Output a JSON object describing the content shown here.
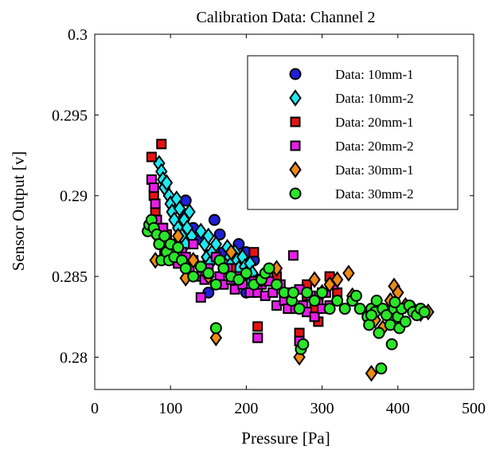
{
  "chart_data": {
    "type": "scatter",
    "title": "Calibration Data: Channel 2",
    "xlabel": "Pressure [Pa]",
    "ylabel": "Sensor Output [v]",
    "xlim": [
      0,
      500
    ],
    "ylim": [
      0.278,
      0.3
    ],
    "xticks": [
      0,
      100,
      200,
      300,
      400,
      500
    ],
    "xtick_labels": [
      "0",
      "100",
      "200",
      "300",
      "400",
      "500"
    ],
    "yticks": [
      0.28,
      0.285,
      0.29,
      0.295,
      0.3
    ],
    "ytick_labels": [
      "0.28",
      "0.285",
      "0.29",
      "0.295",
      "0.3"
    ],
    "grid": false,
    "legend_position": "top-right",
    "series": [
      {
        "name": "Data: 10mm-1",
        "marker": "circle",
        "color": "#1f1fd6",
        "points": [
          [
            120,
            0.2897
          ],
          [
            130,
            0.288
          ],
          [
            140,
            0.2873
          ],
          [
            150,
            0.286
          ],
          [
            158,
            0.2885
          ],
          [
            165,
            0.2876
          ],
          [
            170,
            0.2865
          ],
          [
            180,
            0.2862
          ],
          [
            190,
            0.287
          ],
          [
            195,
            0.2858
          ],
          [
            200,
            0.2865
          ],
          [
            205,
            0.2852
          ],
          [
            210,
            0.286
          ],
          [
            215,
            0.2848
          ],
          [
            150,
            0.284
          ],
          [
            200,
            0.284
          ],
          [
            118,
            0.2888
          ]
        ]
      },
      {
        "name": "Data: 10mm-2",
        "marker": "diamond",
        "color": "#1fe8f0",
        "points": [
          [
            85,
            0.292
          ],
          [
            88,
            0.2915
          ],
          [
            90,
            0.291
          ],
          [
            92,
            0.2905
          ],
          [
            95,
            0.2908
          ],
          [
            98,
            0.29
          ],
          [
            100,
            0.2895
          ],
          [
            102,
            0.289
          ],
          [
            105,
            0.2885
          ],
          [
            108,
            0.2898
          ],
          [
            110,
            0.288
          ],
          [
            112,
            0.2892
          ],
          [
            115,
            0.2875
          ],
          [
            118,
            0.2885
          ],
          [
            120,
            0.287
          ],
          [
            122,
            0.288
          ],
          [
            125,
            0.289
          ],
          [
            128,
            0.2875
          ],
          [
            140,
            0.2878
          ],
          [
            145,
            0.287
          ],
          [
            148,
            0.2862
          ],
          [
            150,
            0.2875
          ],
          [
            152,
            0.2858
          ],
          [
            155,
            0.2865
          ],
          [
            160,
            0.287
          ],
          [
            165,
            0.286
          ],
          [
            170,
            0.2855
          ],
          [
            175,
            0.2868
          ],
          [
            178,
            0.2862
          ],
          [
            180,
            0.2858
          ],
          [
            182,
            0.2852
          ],
          [
            185,
            0.2865
          ],
          [
            188,
            0.286
          ],
          [
            190,
            0.2855
          ],
          [
            192,
            0.2848
          ],
          [
            195,
            0.2862
          ],
          [
            198,
            0.2856
          ],
          [
            200,
            0.285
          ],
          [
            202,
            0.2845
          ],
          [
            205,
            0.2858
          ],
          [
            208,
            0.2852
          ],
          [
            210,
            0.2846
          ]
        ]
      },
      {
        "name": "Data: 20mm-1",
        "marker": "square",
        "color": "#e81212",
        "points": [
          [
            75,
            0.2924
          ],
          [
            78,
            0.29
          ],
          [
            80,
            0.289
          ],
          [
            88,
            0.2932
          ],
          [
            90,
            0.288
          ],
          [
            95,
            0.2876
          ],
          [
            100,
            0.287
          ],
          [
            110,
            0.2865
          ],
          [
            130,
            0.286
          ],
          [
            180,
            0.2855
          ],
          [
            210,
            0.2865
          ],
          [
            215,
            0.2819
          ],
          [
            215,
            0.2812
          ],
          [
            240,
            0.285
          ],
          [
            255,
            0.2835
          ],
          [
            270,
            0.2815
          ],
          [
            280,
            0.2845
          ],
          [
            290,
            0.283
          ],
          [
            295,
            0.2822
          ],
          [
            300,
            0.284
          ],
          [
            310,
            0.285
          ],
          [
            320,
            0.284
          ],
          [
            280,
            0.2838
          ]
        ]
      },
      {
        "name": "Data: 20mm-2",
        "marker": "square",
        "color": "#e81ce8",
        "points": [
          [
            75,
            0.291
          ],
          [
            78,
            0.2905
          ],
          [
            80,
            0.2895
          ],
          [
            82,
            0.2885
          ],
          [
            85,
            0.2875
          ],
          [
            88,
            0.287
          ],
          [
            90,
            0.288
          ],
          [
            92,
            0.2865
          ],
          [
            95,
            0.2872
          ],
          [
            100,
            0.2868
          ],
          [
            105,
            0.286
          ],
          [
            110,
            0.2858
          ],
          [
            115,
            0.2865
          ],
          [
            120,
            0.2862
          ],
          [
            125,
            0.2855
          ],
          [
            130,
            0.287
          ],
          [
            135,
            0.285
          ],
          [
            140,
            0.2837
          ],
          [
            145,
            0.2848
          ],
          [
            150,
            0.2855
          ],
          [
            160,
            0.2862
          ],
          [
            165,
            0.285
          ],
          [
            170,
            0.2845
          ],
          [
            175,
            0.2855
          ],
          [
            180,
            0.2848
          ],
          [
            185,
            0.2842
          ],
          [
            190,
            0.285
          ],
          [
            195,
            0.2845
          ],
          [
            200,
            0.2852
          ],
          [
            205,
            0.284
          ],
          [
            210,
            0.2847
          ],
          [
            215,
            0.284
          ],
          [
            220,
            0.2845
          ],
          [
            225,
            0.2838
          ],
          [
            230,
            0.2847
          ],
          [
            235,
            0.284
          ],
          [
            240,
            0.2832
          ],
          [
            245,
            0.2845
          ],
          [
            250,
            0.2835
          ],
          [
            255,
            0.283
          ],
          [
            260,
            0.284
          ],
          [
            262,
            0.2863
          ],
          [
            265,
            0.283
          ],
          [
            270,
            0.2842
          ],
          [
            275,
            0.2832
          ],
          [
            280,
            0.2828
          ],
          [
            285,
            0.2838
          ],
          [
            290,
            0.2825
          ],
          [
            295,
            0.2835
          ],
          [
            300,
            0.283
          ],
          [
            305,
            0.284
          ],
          [
            310,
            0.2832
          ],
          [
            315,
            0.2845
          ],
          [
            215,
            0.2812
          ],
          [
            270,
            0.281
          ]
        ]
      },
      {
        "name": "Data: 30mm-1",
        "marker": "diamond",
        "color": "#f08a12",
        "points": [
          [
            80,
            0.286
          ],
          [
            90,
            0.287
          ],
          [
            100,
            0.2865
          ],
          [
            110,
            0.2875
          ],
          [
            120,
            0.2849
          ],
          [
            130,
            0.286
          ],
          [
            150,
            0.285
          ],
          [
            160,
            0.2812
          ],
          [
            180,
            0.2865
          ],
          [
            200,
            0.2852
          ],
          [
            220,
            0.2848
          ],
          [
            240,
            0.2855
          ],
          [
            270,
            0.28
          ],
          [
            290,
            0.2848
          ],
          [
            300,
            0.284
          ],
          [
            310,
            0.2845
          ],
          [
            320,
            0.2848
          ],
          [
            335,
            0.2852
          ],
          [
            340,
            0.2838
          ],
          [
            365,
            0.279
          ],
          [
            370,
            0.2823
          ],
          [
            380,
            0.2818
          ],
          [
            390,
            0.2835
          ],
          [
            395,
            0.2844
          ],
          [
            400,
            0.284
          ],
          [
            410,
            0.2832
          ],
          [
            420,
            0.283
          ],
          [
            430,
            0.2827
          ],
          [
            440,
            0.2828
          ]
        ]
      },
      {
        "name": "Data: 30mm-2",
        "marker": "circle",
        "color": "#28e628",
        "points": [
          [
            70,
            0.2878
          ],
          [
            72,
            0.2882
          ],
          [
            75,
            0.2885
          ],
          [
            78,
            0.288
          ],
          [
            82,
            0.2876
          ],
          [
            85,
            0.287
          ],
          [
            88,
            0.286
          ],
          [
            92,
            0.2875
          ],
          [
            95,
            0.2865
          ],
          [
            98,
            0.286
          ],
          [
            100,
            0.287
          ],
          [
            105,
            0.2862
          ],
          [
            110,
            0.2868
          ],
          [
            115,
            0.286
          ],
          [
            120,
            0.2855
          ],
          [
            130,
            0.285
          ],
          [
            140,
            0.2856
          ],
          [
            150,
            0.2852
          ],
          [
            160,
            0.2845
          ],
          [
            160,
            0.2818
          ],
          [
            165,
            0.286
          ],
          [
            170,
            0.2855
          ],
          [
            180,
            0.285
          ],
          [
            190,
            0.2848
          ],
          [
            200,
            0.2852
          ],
          [
            210,
            0.2845
          ],
          [
            220,
            0.2848
          ],
          [
            225,
            0.2852
          ],
          [
            230,
            0.2855
          ],
          [
            240,
            0.2845
          ],
          [
            250,
            0.284
          ],
          [
            260,
            0.2835
          ],
          [
            262,
            0.284
          ],
          [
            270,
            0.283
          ],
          [
            272,
            0.2805
          ],
          [
            275,
            0.2808
          ],
          [
            280,
            0.284
          ],
          [
            290,
            0.2835
          ],
          [
            300,
            0.284
          ],
          [
            310,
            0.283
          ],
          [
            320,
            0.2835
          ],
          [
            330,
            0.283
          ],
          [
            340,
            0.2835
          ],
          [
            345,
            0.2838
          ],
          [
            350,
            0.283
          ],
          [
            360,
            0.2825
          ],
          [
            362,
            0.282
          ],
          [
            365,
            0.283
          ],
          [
            370,
            0.2828
          ],
          [
            372,
            0.2835
          ],
          [
            375,
            0.2815
          ],
          [
            380,
            0.283
          ],
          [
            385,
            0.2826
          ],
          [
            390,
            0.282
          ],
          [
            392,
            0.2808
          ],
          [
            395,
            0.283
          ],
          [
            400,
            0.2825
          ],
          [
            402,
            0.2818
          ],
          [
            405,
            0.283
          ],
          [
            410,
            0.2822
          ],
          [
            415,
            0.2832
          ],
          [
            420,
            0.2828
          ],
          [
            425,
            0.2826
          ],
          [
            430,
            0.283
          ],
          [
            435,
            0.2828
          ],
          [
            378,
            0.2793
          ],
          [
            365,
            0.2826
          ],
          [
            396,
            0.2834
          ]
        ]
      }
    ]
  }
}
